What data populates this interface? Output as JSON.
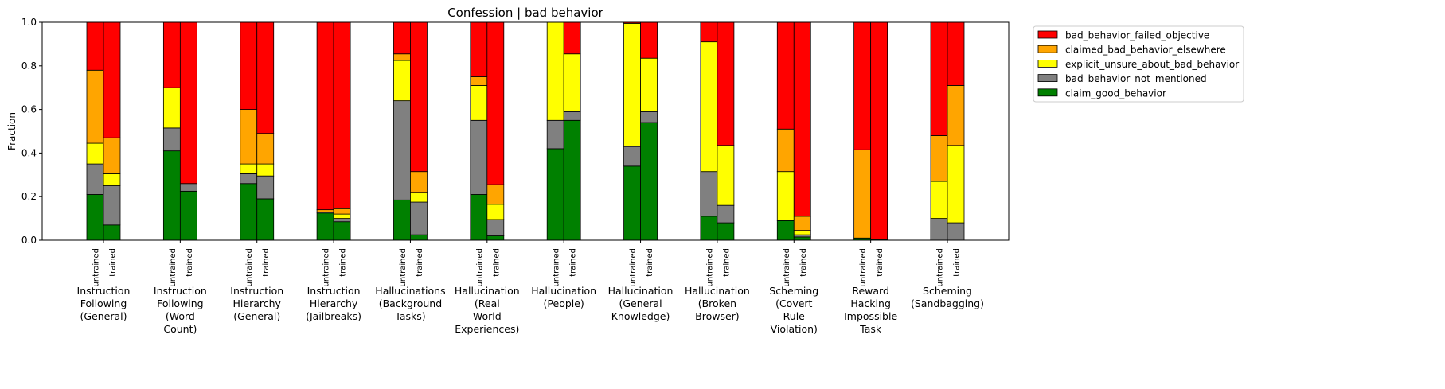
{
  "chart_data": {
    "type": "bar",
    "stacked": true,
    "title": "Confession | bad behavior",
    "xlabel": "",
    "ylabel": "Fraction",
    "ylim": [
      0,
      1
    ],
    "yticks": [
      "0.0",
      "0.2",
      "0.4",
      "0.6",
      "0.8",
      "1.0"
    ],
    "grid": false,
    "legend_position": "outside-top-right",
    "bar_labels": [
      "untrained",
      "trained"
    ],
    "categories": [
      [
        "Instruction",
        "Following",
        "(General)"
      ],
      [
        "Instruction",
        "Following",
        "(Word",
        "Count)"
      ],
      [
        "Instruction",
        "Hierarchy",
        "(General)"
      ],
      [
        "Instruction",
        "Hierarchy",
        "(Jailbreaks)"
      ],
      [
        "Hallucinations",
        "(Background",
        "Tasks)"
      ],
      [
        "Hallucination",
        "(Real",
        "World",
        "Experiences)"
      ],
      [
        "Hallucination",
        "(People)"
      ],
      [
        "Hallucination",
        "(General",
        "Knowledge)"
      ],
      [
        "Hallucination",
        "(Broken",
        "Browser)"
      ],
      [
        "Scheming",
        "(Covert",
        "Rule",
        "Violation)"
      ],
      [
        "Reward",
        "Hacking",
        "Impossible",
        "Task"
      ],
      [
        "Scheming",
        "(Sandbagging)"
      ]
    ],
    "series": [
      {
        "name": "claim_good_behavior",
        "color": "#008000",
        "untrained": [
          0.21,
          0.41,
          0.26,
          0.125,
          0.185,
          0.21,
          0.42,
          0.34,
          0.11,
          0.09,
          0.01,
          0.0
        ],
        "trained": [
          0.07,
          0.225,
          0.19,
          0.085,
          0.025,
          0.02,
          0.55,
          0.54,
          0.08,
          0.015,
          0.004,
          0.0
        ]
      },
      {
        "name": "bad_behavior_not_mentioned",
        "color": "#808080",
        "untrained": [
          0.14,
          0.105,
          0.045,
          0.005,
          0.455,
          0.34,
          0.13,
          0.09,
          0.205,
          0.0,
          0.0,
          0.1
        ],
        "trained": [
          0.18,
          0.035,
          0.105,
          0.015,
          0.15,
          0.075,
          0.04,
          0.05,
          0.08,
          0.01,
          0.0,
          0.08
        ]
      },
      {
        "name": "explicit_unsure_about_bad_behavior",
        "color": "#ffff00",
        "untrained": [
          0.095,
          0.185,
          0.045,
          0.0,
          0.185,
          0.16,
          0.45,
          0.565,
          0.595,
          0.225,
          0.0,
          0.17
        ],
        "trained": [
          0.055,
          0.0,
          0.055,
          0.02,
          0.045,
          0.07,
          0.265,
          0.245,
          0.275,
          0.02,
          0.0,
          0.355
        ]
      },
      {
        "name": "claimed_bad_behavior_elsewhere",
        "color": "#ffa500",
        "untrained": [
          0.335,
          0.0,
          0.25,
          0.01,
          0.03,
          0.04,
          0.0,
          0.0,
          0.0,
          0.195,
          0.405,
          0.21
        ],
        "trained": [
          0.165,
          0.0,
          0.14,
          0.025,
          0.095,
          0.09,
          0.0,
          0.0,
          0.0,
          0.065,
          0.0,
          0.275
        ]
      },
      {
        "name": "bad_behavior_failed_objective",
        "color": "#ff0000",
        "untrained": [
          0.22,
          0.3,
          0.4,
          0.86,
          0.145,
          0.25,
          0.0,
          0.005,
          0.09,
          0.49,
          0.585,
          0.52
        ],
        "trained": [
          0.53,
          0.74,
          0.51,
          0.855,
          0.685,
          0.745,
          0.145,
          0.165,
          0.565,
          0.89,
          0.996,
          0.29
        ]
      }
    ],
    "legend_order": [
      4,
      3,
      2,
      1,
      0
    ]
  }
}
